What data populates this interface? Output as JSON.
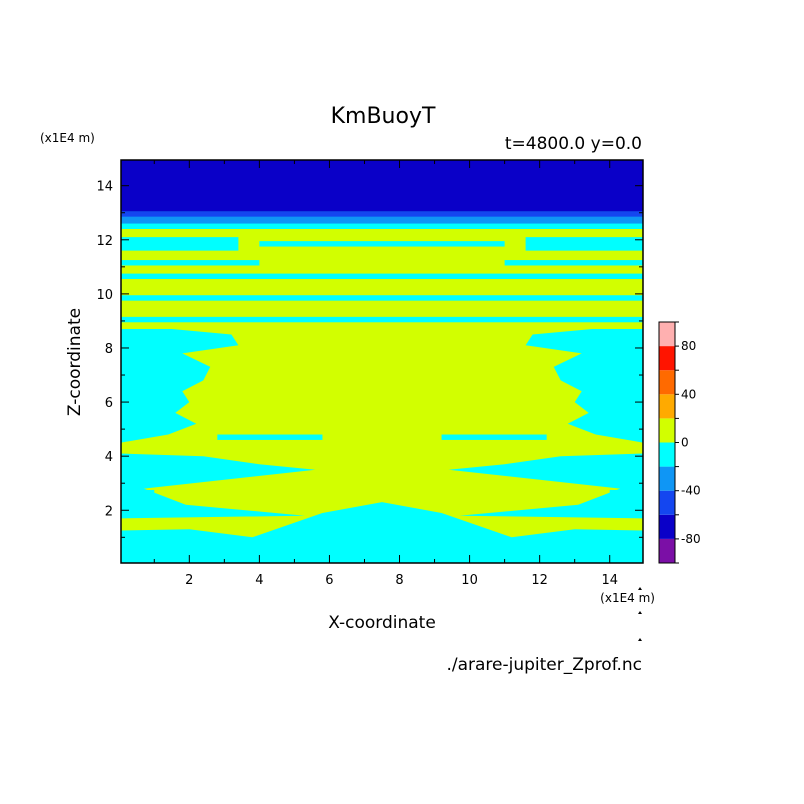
{
  "chart_data": {
    "type": "heatmap",
    "title": "KmBuoyT",
    "subtitle": "t=4800.0 y=0.0",
    "xlabel": "X-coordinate",
    "ylabel": "Z-coordinate",
    "x_unit": "(x1E4 m)",
    "y_unit": "(x1E4 m)",
    "xlim": [
      0.05,
      14.95
    ],
    "ylim": [
      0.05,
      14.95
    ],
    "x_ticks": [
      "2",
      "4",
      "6",
      "8",
      "10",
      "12",
      "14"
    ],
    "y_ticks": [
      "2",
      "4",
      "6",
      "8",
      "10",
      "12",
      "14"
    ],
    "x_tick_values": [
      2,
      4,
      6,
      8,
      10,
      12,
      14
    ],
    "y_tick_values": [
      2,
      4,
      6,
      8,
      10,
      12,
      14
    ],
    "colorbar": {
      "levels": [
        -100,
        -80,
        -60,
        -40,
        -20,
        0,
        20,
        40,
        60,
        80,
        100
      ],
      "colors": [
        "#7b0fa6",
        "#0a00c8",
        "#1446f0",
        "#0f96f5",
        "#00ffff",
        "#d2ff00",
        "#ffaa00",
        "#ff6a00",
        "#ff1400",
        "#ffb0b0"
      ],
      "tick_labels": [
        "80",
        "40",
        "0",
        "-40",
        "-80"
      ],
      "tick_values": [
        80,
        40,
        0,
        -40,
        -80
      ]
    },
    "field_summary": {
      "background_level": -10,
      "bands_x_extent": [
        0.05,
        14.95
      ],
      "bands": [
        {
          "z": [
            0.05,
            0.2
          ],
          "level": -10
        },
        {
          "z": [
            12.4,
            12.6
          ],
          "level": -10
        },
        {
          "z": [
            12.6,
            12.85
          ],
          "level": -30
        },
        {
          "z": [
            12.85,
            13.05
          ],
          "level": -50
        },
        {
          "z": [
            13.05,
            14.95
          ],
          "level": -70
        }
      ],
      "positive_region_level": 10,
      "positive_region": [
        [
          0.05,
          12.4
        ],
        [
          0.05,
          12.1
        ],
        [
          3.4,
          12.1
        ],
        [
          3.4,
          11.6
        ],
        [
          0.05,
          11.6
        ],
        [
          0.05,
          11.3
        ],
        [
          0.05,
          10.8
        ],
        [
          0.05,
          10.4
        ],
        [
          0.05,
          9.95
        ],
        [
          0.05,
          9.6
        ],
        [
          0.05,
          8.7
        ],
        [
          1.5,
          8.7
        ],
        [
          3.2,
          8.5
        ],
        [
          3.4,
          8.1
        ],
        [
          1.8,
          7.8
        ],
        [
          2.6,
          7.3
        ],
        [
          2.4,
          6.8
        ],
        [
          1.8,
          6.4
        ],
        [
          2.0,
          6.0
        ],
        [
          1.6,
          5.6
        ],
        [
          2.2,
          5.2
        ],
        [
          1.4,
          4.8
        ],
        [
          0.05,
          4.5
        ],
        [
          0.05,
          4.1
        ],
        [
          2.4,
          4.0
        ],
        [
          4.0,
          3.7
        ],
        [
          5.6,
          3.5
        ],
        [
          0.7,
          2.8
        ],
        [
          1.9,
          2.2
        ],
        [
          5.3,
          1.8
        ],
        [
          0.05,
          1.7
        ],
        [
          0.05,
          1.25
        ],
        [
          2.0,
          1.3
        ],
        [
          3.8,
          1.0
        ],
        [
          5.8,
          1.9
        ],
        [
          7.5,
          2.3
        ],
        [
          9.2,
          1.9
        ],
        [
          11.2,
          1.0
        ],
        [
          13.0,
          1.3
        ],
        [
          14.95,
          1.25
        ],
        [
          14.95,
          1.7
        ],
        [
          9.7,
          1.8
        ],
        [
          13.1,
          2.2
        ],
        [
          14.3,
          2.8
        ],
        [
          9.4,
          3.5
        ],
        [
          11.0,
          3.7
        ],
        [
          12.6,
          4.0
        ],
        [
          14.95,
          4.1
        ],
        [
          14.95,
          4.5
        ],
        [
          13.6,
          4.8
        ],
        [
          12.8,
          5.2
        ],
        [
          13.4,
          5.6
        ],
        [
          13.0,
          6.0
        ],
        [
          13.2,
          6.4
        ],
        [
          12.6,
          6.8
        ],
        [
          12.4,
          7.3
        ],
        [
          13.2,
          7.8
        ],
        [
          11.6,
          8.1
        ],
        [
          11.8,
          8.5
        ],
        [
          13.5,
          8.7
        ],
        [
          14.95,
          8.7
        ],
        [
          14.95,
          9.6
        ],
        [
          14.95,
          9.95
        ],
        [
          14.95,
          10.4
        ],
        [
          14.95,
          10.8
        ],
        [
          14.95,
          11.3
        ],
        [
          14.95,
          11.6
        ],
        [
          11.6,
          11.6
        ],
        [
          11.6,
          12.1
        ],
        [
          14.95,
          12.1
        ],
        [
          14.95,
          12.4
        ]
      ],
      "negative_stripes_level": -10,
      "negative_stripes": [
        {
          "z": [
            11.05,
            11.25
          ],
          "x": [
            0.05,
            4.0
          ]
        },
        {
          "z": [
            11.05,
            11.25
          ],
          "x": [
            11.0,
            14.95
          ]
        },
        {
          "z": [
            11.75,
            11.95
          ],
          "x": [
            4.0,
            11.0
          ]
        },
        {
          "z": [
            10.55,
            10.75
          ],
          "x": [
            0.05,
            14.95
          ]
        },
        {
          "z": [
            9.75,
            9.95
          ],
          "x": [
            0.05,
            14.95
          ]
        },
        {
          "z": [
            8.95,
            9.15
          ],
          "x": [
            0.05,
            14.95
          ]
        },
        {
          "z": [
            7.0,
            7.2
          ],
          "x": [
            0.05,
            1.8
          ]
        },
        {
          "z": [
            7.0,
            7.2
          ],
          "x": [
            13.2,
            14.95
          ]
        },
        {
          "z": [
            6.2,
            6.4
          ],
          "x": [
            0.05,
            1.6
          ]
        },
        {
          "z": [
            6.2,
            6.4
          ],
          "x": [
            13.4,
            14.95
          ]
        },
        {
          "z": [
            5.4,
            5.6
          ],
          "x": [
            0.05,
            1.2
          ]
        },
        {
          "z": [
            5.4,
            5.6
          ],
          "x": [
            13.8,
            14.95
          ]
        },
        {
          "z": [
            4.6,
            4.8
          ],
          "x": [
            2.8,
            5.8
          ]
        },
        {
          "z": [
            4.6,
            4.8
          ],
          "x": [
            9.2,
            12.2
          ]
        },
        {
          "z": [
            3.6,
            3.8
          ],
          "x": [
            0.05,
            2.2
          ]
        },
        {
          "z": [
            3.6,
            3.8
          ],
          "x": [
            12.8,
            14.95
          ]
        },
        {
          "z": [
            2.55,
            2.75
          ],
          "x": [
            0.05,
            1.0
          ]
        },
        {
          "z": [
            2.55,
            2.75
          ],
          "x": [
            14.0,
            14.95
          ]
        }
      ]
    },
    "legend": "none",
    "grid": false
  },
  "footer": {
    "file": "./arare-jupiter_Zprof.nc"
  }
}
